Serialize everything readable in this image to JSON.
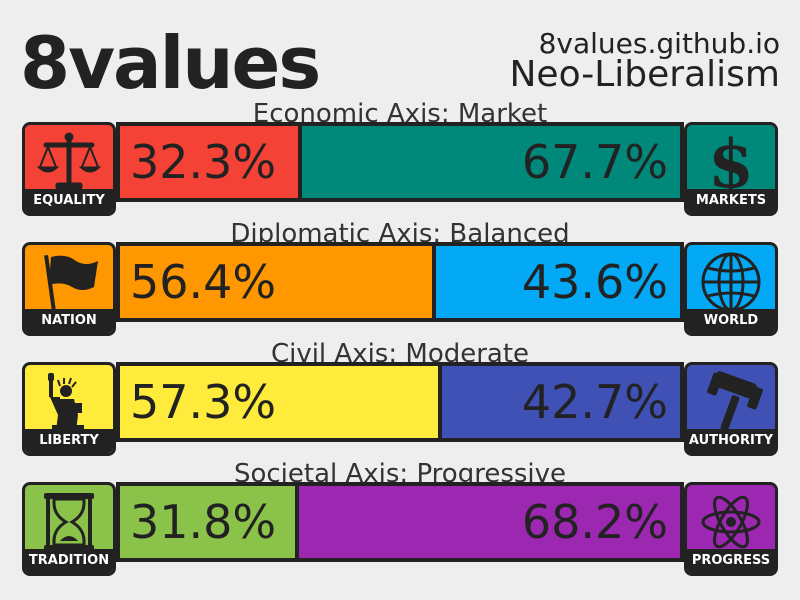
{
  "header": {
    "title": "8values",
    "site": "8values.github.io",
    "ideology": "Neo-Liberalism"
  },
  "axes": [
    {
      "label": "Economic Axis: Market",
      "left": {
        "name": "EQUALITY",
        "percent": 32.3,
        "percent_text": "32.3%",
        "color": "#f44336",
        "icon": "scales-icon"
      },
      "right": {
        "name": "MARKETS",
        "percent": 67.7,
        "percent_text": "67.7%",
        "color": "#00897b",
        "icon": "dollar-icon"
      }
    },
    {
      "label": "Diplomatic Axis: Balanced",
      "left": {
        "name": "NATION",
        "percent": 56.4,
        "percent_text": "56.4%",
        "color": "#ff9800",
        "icon": "flag-icon"
      },
      "right": {
        "name": "WORLD",
        "percent": 43.6,
        "percent_text": "43.6%",
        "color": "#03a9f4",
        "icon": "globe-icon"
      }
    },
    {
      "label": "Civil Axis: Moderate",
      "left": {
        "name": "LIBERTY",
        "percent": 57.3,
        "percent_text": "57.3%",
        "color": "#ffeb3b",
        "icon": "statue-of-liberty-icon"
      },
      "right": {
        "name": "AUTHORITY",
        "percent": 42.7,
        "percent_text": "42.7%",
        "color": "#3f51b5",
        "icon": "gavel-icon"
      }
    },
    {
      "label": "Societal Axis: Progressive",
      "left": {
        "name": "TRADITION",
        "percent": 31.8,
        "percent_text": "31.8%",
        "color": "#8bc34a",
        "icon": "hourglass-icon"
      },
      "right": {
        "name": "PROGRESS",
        "percent": 68.2,
        "percent_text": "68.2%",
        "color": "#9c27b0",
        "icon": "atom-icon"
      }
    }
  ]
}
